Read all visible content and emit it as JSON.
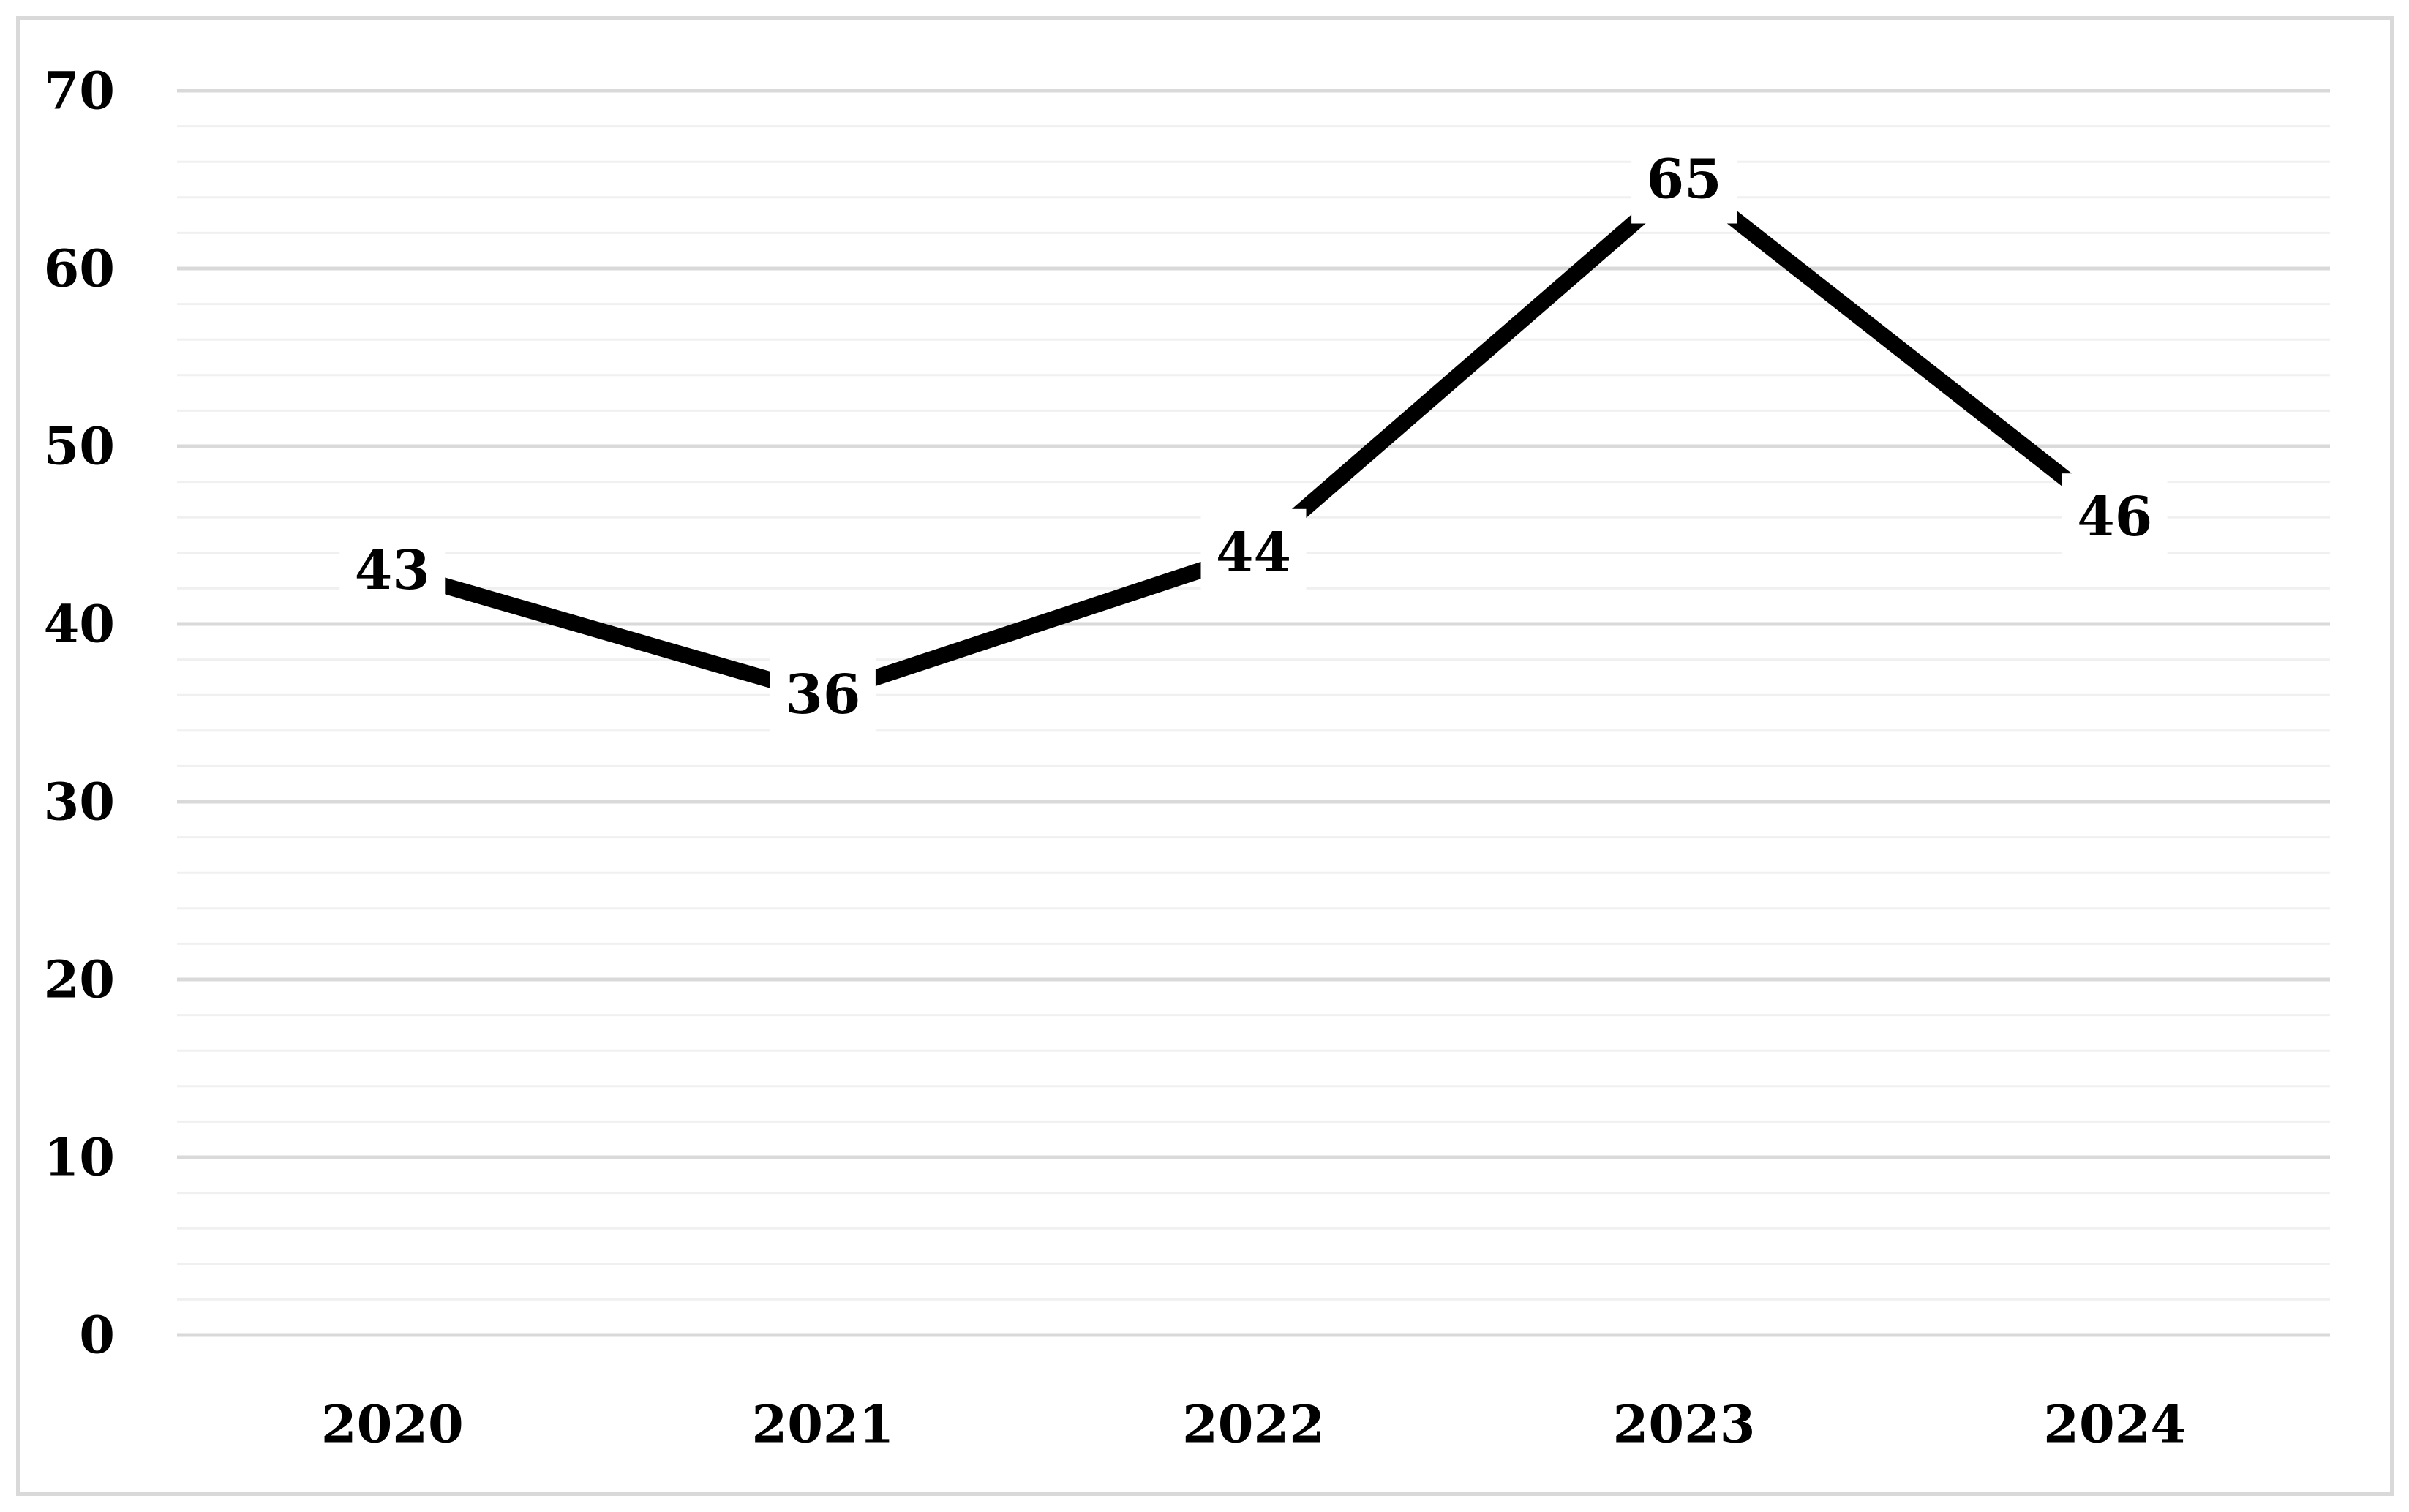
{
  "chart_data": {
    "type": "line",
    "title": "",
    "xlabel": "",
    "ylabel": "",
    "categories": [
      "2020",
      "2021",
      "2022",
      "2023",
      "2024"
    ],
    "series": [
      {
        "values": [
          43,
          36,
          44,
          65,
          46
        ]
      }
    ],
    "ylim": [
      0,
      70
    ],
    "y_ticks": [
      0,
      10,
      20,
      30,
      40,
      50,
      60,
      70
    ],
    "grid": true,
    "minor_grid": true,
    "data_labels": true,
    "legend": "none",
    "colors": {
      "line": "#000000",
      "major_grid": "#d9d9d9",
      "minor_grid": "#f0f0f0",
      "frame": "#d9d9d9"
    }
  }
}
